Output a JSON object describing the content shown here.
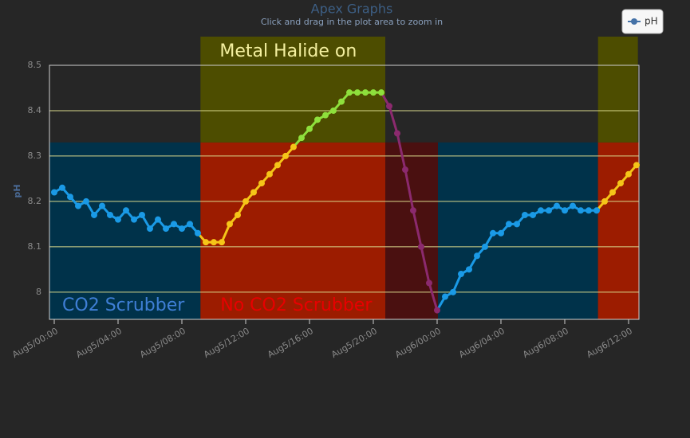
{
  "chart_data": {
    "type": "line",
    "title": "Apex Graphs",
    "subtitle": "Click and drag in the plot area to zoom in",
    "y_label": "pH",
    "xlim": [
      "Aug4/23:42",
      "Aug6/12:39"
    ],
    "xticks": [
      "Aug5/00:00",
      "Aug5/04:00",
      "Aug5/08:00",
      "Aug5/12:00",
      "Aug5/16:00",
      "Aug5/20:00",
      "Aug6/00:00",
      "Aug6/04:00",
      "Aug6/08:00",
      "Aug6/12:00"
    ],
    "ylim": [
      7.94,
      8.5
    ],
    "yticks": [
      8,
      8.1,
      8.2,
      8.3,
      8.4,
      8.5
    ],
    "grid": true,
    "legend": "top-right",
    "band_split": 8.33,
    "bands": [
      {
        "side": "below",
        "from": "Aug4/23:42",
        "to": "Aug5/09:10",
        "color": "#00324a"
      },
      {
        "side": "below",
        "from": "Aug5/09:10",
        "to": "Aug5/20:45",
        "color": "#9c1c00"
      },
      {
        "side": "below",
        "from": "Aug5/20:45",
        "to": "Aug6/00:03",
        "color": "#4a1010"
      },
      {
        "side": "below",
        "from": "Aug6/00:03",
        "to": "Aug6/10:05",
        "color": "#00324a"
      },
      {
        "side": "below",
        "from": "Aug6/10:05",
        "to": "Aug6/12:39",
        "color": "#9c1c00"
      },
      {
        "side": "above",
        "from": "Aug5/09:10",
        "to": "Aug5/20:45",
        "color": "#4d4d00"
      },
      {
        "side": "above",
        "from": "Aug6/10:05",
        "to": "Aug6/12:35",
        "color": "#4d4d00"
      }
    ],
    "annotations": [
      {
        "text": "Metal Halide on",
        "x": "Aug5/14:40",
        "side": "above",
        "color": "#f4f0a0"
      },
      {
        "text": "CO2 Scrubber",
        "x": "Aug5/04:20",
        "side": "below",
        "color": "#3f7fd6"
      },
      {
        "text": "No CO2 Scrubber",
        "x": "Aug5/15:10",
        "side": "below",
        "color": "#e80000"
      }
    ],
    "zones": [
      {
        "until": "Aug5/09:10",
        "color": "#1a9ae6"
      },
      {
        "until": "Aug5/15:20",
        "color": "#f5c518"
      },
      {
        "until": "Aug5/20:45",
        "color": "#8ee03c"
      },
      {
        "until": "Aug6/00:03",
        "color": "#8b2a6e"
      },
      {
        "until": "Aug6/10:05",
        "color": "#1a9ae6"
      },
      {
        "color": "#f5c518"
      }
    ],
    "x": [
      "Aug5/00:00",
      "Aug5/00:30",
      "Aug5/01:00",
      "Aug5/01:30",
      "Aug5/02:00",
      "Aug5/02:30",
      "Aug5/03:00",
      "Aug5/03:30",
      "Aug5/04:00",
      "Aug5/04:30",
      "Aug5/05:00",
      "Aug5/05:30",
      "Aug5/06:00",
      "Aug5/06:30",
      "Aug5/07:00",
      "Aug5/07:30",
      "Aug5/08:00",
      "Aug5/08:30",
      "Aug5/09:00",
      "Aug5/09:30",
      "Aug5/10:00",
      "Aug5/10:30",
      "Aug5/11:00",
      "Aug5/11:30",
      "Aug5/12:00",
      "Aug5/12:30",
      "Aug5/13:00",
      "Aug5/13:30",
      "Aug5/14:00",
      "Aug5/14:30",
      "Aug5/15:00",
      "Aug5/15:30",
      "Aug5/16:00",
      "Aug5/16:30",
      "Aug5/17:00",
      "Aug5/17:30",
      "Aug5/18:00",
      "Aug5/18:30",
      "Aug5/19:00",
      "Aug5/19:30",
      "Aug5/20:00",
      "Aug5/20:30",
      "Aug5/21:00",
      "Aug5/21:30",
      "Aug5/22:00",
      "Aug5/22:30",
      "Aug5/23:00",
      "Aug5/23:30",
      "Aug6/00:00",
      "Aug6/00:30",
      "Aug6/01:00",
      "Aug6/01:30",
      "Aug6/02:00",
      "Aug6/02:30",
      "Aug6/03:00",
      "Aug6/03:30",
      "Aug6/04:00",
      "Aug6/04:30",
      "Aug6/05:00",
      "Aug6/05:30",
      "Aug6/06:00",
      "Aug6/06:30",
      "Aug6/07:00",
      "Aug6/07:30",
      "Aug6/08:00",
      "Aug6/08:30",
      "Aug6/09:00",
      "Aug6/09:30",
      "Aug6/10:00",
      "Aug6/10:30",
      "Aug6/11:00",
      "Aug6/11:30",
      "Aug6/12:00",
      "Aug6/12:30"
    ],
    "series": [
      {
        "name": "pH",
        "color": "#4572a7",
        "values": [
          8.22,
          8.23,
          8.21,
          8.19,
          8.2,
          8.17,
          8.19,
          8.17,
          8.16,
          8.18,
          8.16,
          8.17,
          8.14,
          8.16,
          8.14,
          8.15,
          8.14,
          8.15,
          8.13,
          8.11,
          8.11,
          8.11,
          8.15,
          8.17,
          8.2,
          8.22,
          8.24,
          8.26,
          8.28,
          8.3,
          8.32,
          8.34,
          8.36,
          8.38,
          8.39,
          8.4,
          8.42,
          8.44,
          8.44,
          8.44,
          8.44,
          8.44,
          8.41,
          8.35,
          8.27,
          8.18,
          8.1,
          8.02,
          7.96,
          7.99,
          8.0,
          8.04,
          8.05,
          8.08,
          8.1,
          8.13,
          8.13,
          8.15,
          8.15,
          8.17,
          8.17,
          8.18,
          8.18,
          8.19,
          8.18,
          8.19,
          8.18,
          8.18,
          8.18,
          8.2,
          8.22,
          8.24,
          8.26,
          8.28
        ]
      }
    ]
  }
}
